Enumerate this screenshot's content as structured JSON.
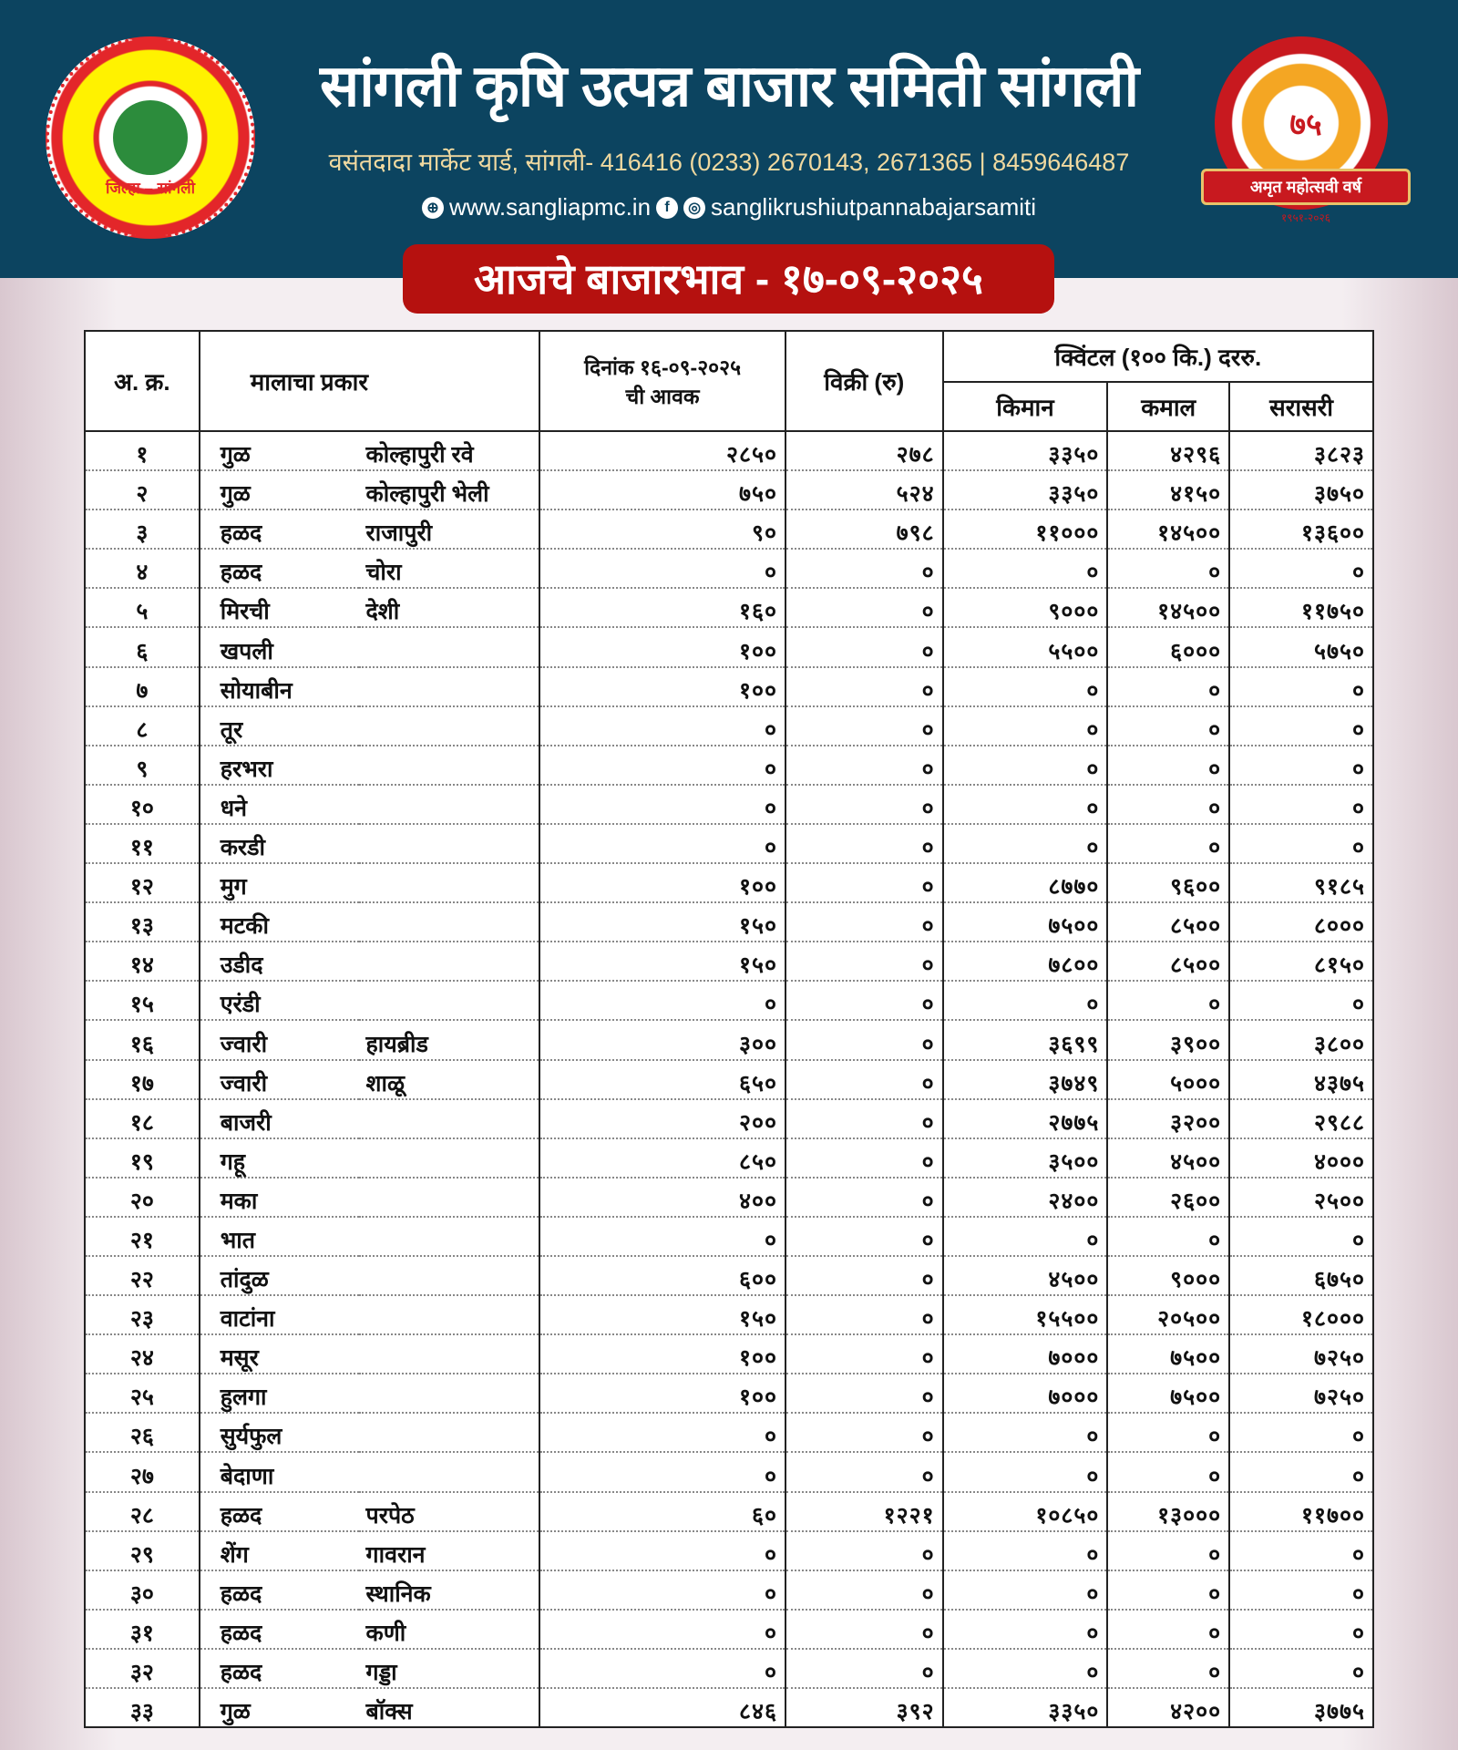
{
  "header": {
    "title": "सांगली कृषि उत्पन्न बाजार समिती सांगली",
    "address": "वसंतदादा मार्केट यार्ड, सांगली- 416416 (0233) 2670143, 2671365 | 8459646487",
    "website": "www.sangliapmc.in",
    "social": "sanglikrushiutpannabajarsamiti",
    "banner": "आजचे बाजारभाव - १७-०९-२०२५"
  },
  "logos": {
    "left_text": "सांगली कृषि उत्पन्न बाजार समिती, सांगली",
    "left_district": "जिल्हा – सांगली",
    "right_number": "७५",
    "right_ribbon": "अमृत महोत्सवी वर्ष",
    "right_years": "१९५१-२०२६"
  },
  "table": {
    "headers": {
      "sr": "अ. क्र.",
      "item": "मालाचा प्रकार",
      "arrival": "दिनांक १६-०९-२०२५ ची आवक",
      "sale": "विक्री (रु)",
      "rate_group": "क्विंटल (१०० कि.) दररु.",
      "min": "किमान",
      "max": "कमाल",
      "avg": "सरासरी"
    },
    "rows": [
      [
        "१",
        "गुळ",
        "कोल्हापुरी रवे",
        "२८५०",
        "२७८",
        "३३५०",
        "४२९६",
        "३८२३"
      ],
      [
        "२",
        "गुळ",
        "कोल्हापुरी भेली",
        "७५०",
        "५२४",
        "३३५०",
        "४१५०",
        "३७५०"
      ],
      [
        "३",
        "हळद",
        "राजापुरी",
        "९०",
        "७९८",
        "११०००",
        "१४५००",
        "१३६००"
      ],
      [
        "४",
        "हळद",
        "चोरा",
        "०",
        "०",
        "०",
        "०",
        "०"
      ],
      [
        "५",
        "मिरची",
        "देशी",
        "१६०",
        "०",
        "९०००",
        "१४५००",
        "११७५०"
      ],
      [
        "६",
        "खपली",
        "",
        "१००",
        "०",
        "५५००",
        "६०००",
        "५७५०"
      ],
      [
        "७",
        "सोयाबीन",
        "",
        "१००",
        "०",
        "०",
        "०",
        "०"
      ],
      [
        "८",
        "तूर",
        "",
        "०",
        "०",
        "०",
        "०",
        "०"
      ],
      [
        "९",
        "हरभरा",
        "",
        "०",
        "०",
        "०",
        "०",
        "०"
      ],
      [
        "१०",
        "धने",
        "",
        "०",
        "०",
        "०",
        "०",
        "०"
      ],
      [
        "११",
        "करडी",
        "",
        "०",
        "०",
        "०",
        "०",
        "०"
      ],
      [
        "१२",
        "मुग",
        "",
        "१००",
        "०",
        "८७७०",
        "९६००",
        "९१८५"
      ],
      [
        "१३",
        "मटकी",
        "",
        "१५०",
        "०",
        "७५००",
        "८५००",
        "८०००"
      ],
      [
        "१४",
        "उडीद",
        "",
        "१५०",
        "०",
        "७८००",
        "८५००",
        "८१५०"
      ],
      [
        "१५",
        "एरंडी",
        "",
        "०",
        "०",
        "०",
        "०",
        "०"
      ],
      [
        "१६",
        "ज्वारी",
        "हायब्रीड",
        "३००",
        "०",
        "३६९९",
        "३९००",
        "३८००"
      ],
      [
        "१७",
        "ज्वारी",
        "शाळू",
        "६५०",
        "०",
        "३७४९",
        "५०००",
        "४३७५"
      ],
      [
        "१८",
        "बाजरी",
        "",
        "२००",
        "०",
        "२७७५",
        "३२००",
        "२९८८"
      ],
      [
        "१९",
        "गहू",
        "",
        "८५०",
        "०",
        "३५००",
        "४५००",
        "४०००"
      ],
      [
        "२०",
        "मका",
        "",
        "४००",
        "०",
        "२४००",
        "२६००",
        "२५००"
      ],
      [
        "२१",
        "भात",
        "",
        "०",
        "०",
        "०",
        "०",
        "०"
      ],
      [
        "२२",
        "तांदुळ",
        "",
        "६००",
        "०",
        "४५००",
        "९०००",
        "६७५०"
      ],
      [
        "२३",
        "वाटांना",
        "",
        "१५०",
        "०",
        "१५५००",
        "२०५००",
        "१८०००"
      ],
      [
        "२४",
        "मसूर",
        "",
        "१००",
        "०",
        "७०००",
        "७५००",
        "७२५०"
      ],
      [
        "२५",
        "हुलगा",
        "",
        "१००",
        "०",
        "७०००",
        "७५००",
        "७२५०"
      ],
      [
        "२६",
        "सुर्यफुल",
        "",
        "०",
        "०",
        "०",
        "०",
        "०"
      ],
      [
        "२७",
        "बेदाणा",
        "",
        "०",
        "०",
        "०",
        "०",
        "०"
      ],
      [
        "२८",
        "हळद",
        "परपेठ",
        "६०",
        "१२२१",
        "१०८५०",
        "१३०००",
        "११७००"
      ],
      [
        "२९",
        "शेंग",
        "गावरान",
        "०",
        "०",
        "०",
        "०",
        "०"
      ],
      [
        "३०",
        "हळद",
        "स्थानिक",
        "०",
        "०",
        "०",
        "०",
        "०"
      ],
      [
        "३१",
        "हळद",
        "कणी",
        "०",
        "०",
        "०",
        "०",
        "०"
      ],
      [
        "३२",
        "हळद",
        "गड्डा",
        "०",
        "०",
        "०",
        "०",
        "०"
      ],
      [
        "३३",
        "गुळ",
        "बॉक्स",
        "८४६",
        "३९२",
        "३३५०",
        "४२००",
        "३७७५"
      ]
    ]
  },
  "colors": {
    "header_bg": "#0c4460",
    "banner_bg": "#b5110f",
    "address_text": "#f0d9a0"
  }
}
